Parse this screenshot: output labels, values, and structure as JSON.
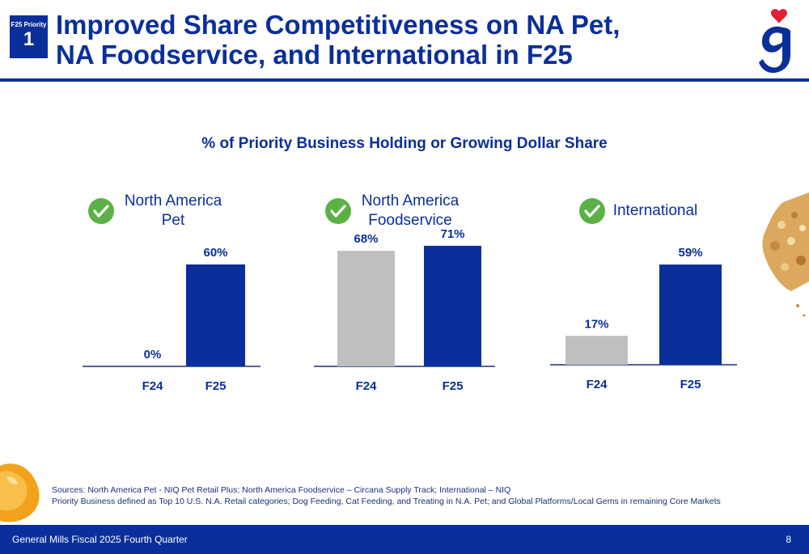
{
  "header": {
    "badge_label": "F25 Priority",
    "badge_number": "1",
    "title": "Improved Share Competitiveness on NA Pet,\nNA Foodservice, and International in F25"
  },
  "colors": {
    "brand_blue": "#0a2f9a",
    "f24_gray": "#bfbfbf",
    "check_green": "#5cb146",
    "heart_red": "#e0202f"
  },
  "icons": {
    "logo": "general-mills-g-logo",
    "check": "check-circle-icon"
  },
  "chart_data": {
    "type": "bar",
    "title": "% of Priority Business Holding or Growing Dollar Share",
    "categories": [
      "F24",
      "F25"
    ],
    "ylim": [
      0,
      100
    ],
    "panels": [
      {
        "name": "North America\nPet",
        "series": [
          {
            "values": [
              0,
              60
            ]
          }
        ],
        "value_labels": [
          "0%",
          "60%"
        ]
      },
      {
        "name": "North America\nFoodservice",
        "series": [
          {
            "values": [
              68,
              71
            ]
          }
        ],
        "value_labels": [
          "68%",
          "71%"
        ]
      },
      {
        "name": "International",
        "series": [
          {
            "values": [
              17,
              59
            ]
          }
        ],
        "value_labels": [
          "17%",
          "59%"
        ]
      }
    ]
  },
  "sources": {
    "line1": "Sources: North America Pet - NIQ Pet Retail Plus; North America Foodservice – Circana Supply Track;  International – NIQ",
    "line2": "Priority Business defined as Top 10 U.S. N.A. Retail categories; Dog Feeding, Cat Feeding, and Treating in N.A. Pet; and Global Platforms/Local Gems in remaining Core Markets"
  },
  "footer": {
    "text": "General Mills Fiscal 2025 Fourth Quarter",
    "page": "8"
  }
}
